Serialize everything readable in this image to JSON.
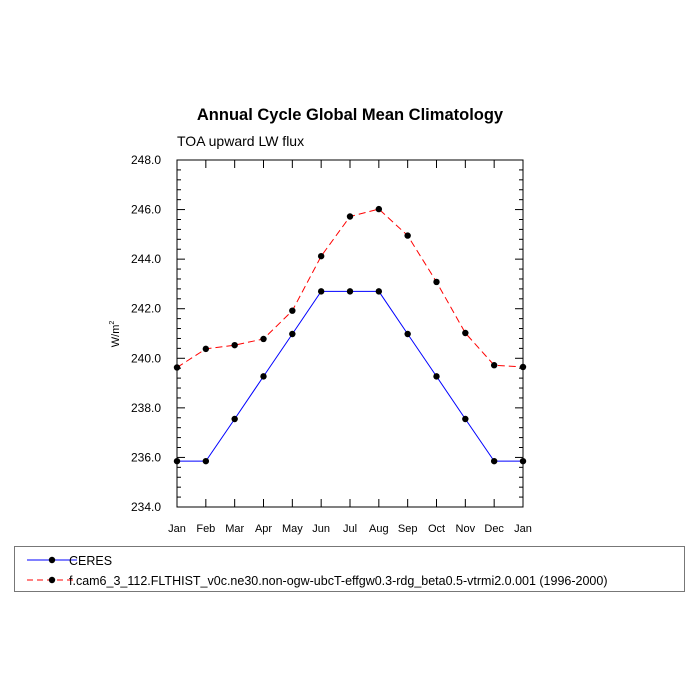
{
  "chart_data": {
    "type": "line",
    "title": "Annual Cycle Global Mean Climatology",
    "subtitle": "TOA upward LW flux",
    "ylabel": "W/m",
    "ylabel_sup": "2",
    "ylim": [
      234.0,
      248.0
    ],
    "yticks": [
      "234.0",
      "236.0",
      "238.0",
      "240.0",
      "242.0",
      "244.0",
      "246.0",
      "248.0"
    ],
    "categories": [
      "Jan",
      "Feb",
      "Mar",
      "Apr",
      "May",
      "Jun",
      "Jul",
      "Aug",
      "Sep",
      "Oct",
      "Nov",
      "Dec",
      "Jan"
    ],
    "series": [
      {
        "name": "CERES",
        "color": "#0000ff",
        "style": "solid",
        "values": [
          235.85,
          235.85,
          237.55,
          239.27,
          240.98,
          242.7,
          242.7,
          242.7,
          240.98,
          239.27,
          237.55,
          235.85,
          235.85
        ]
      },
      {
        "name": "f.cam6_3_112.FLTHIST_v0c.ne30.non-ogw-ubcT-effgw0.3-rdg_beta0.5-vtrmi2.0.001 (1996-2000)",
        "color": "#ff0000",
        "style": "dashed",
        "values": [
          239.63,
          240.38,
          240.53,
          240.78,
          241.92,
          244.12,
          245.72,
          246.02,
          244.95,
          243.08,
          241.02,
          239.72,
          239.65
        ]
      }
    ],
    "grid": false,
    "legend_position": "bottom"
  }
}
